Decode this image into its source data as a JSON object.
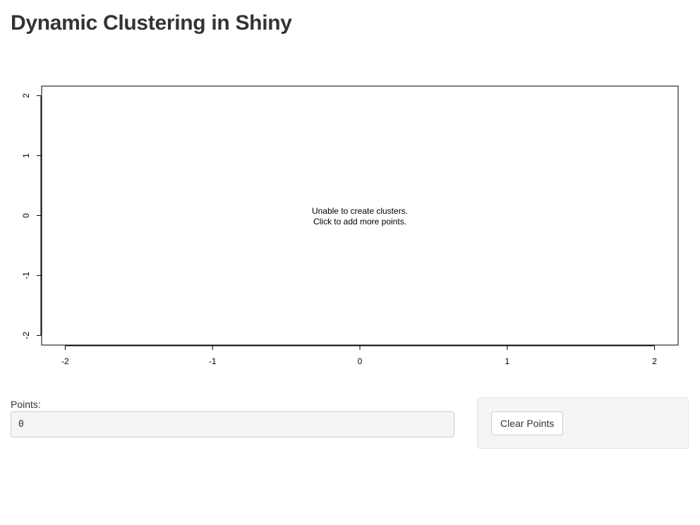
{
  "page": {
    "title": "Dynamic Clustering in Shiny"
  },
  "plot": {
    "message_line1": "Unable to create clusters.",
    "message_line2": "Click to add more points.",
    "x_ticks": [
      "-2",
      "-1",
      "0",
      "1",
      "2"
    ],
    "y_ticks": [
      "-2",
      "-1",
      "0",
      "1",
      "2"
    ]
  },
  "chart_data": {
    "type": "scatter",
    "series": [],
    "x_ticks": [
      -2,
      -1,
      0,
      1,
      2
    ],
    "y_ticks": [
      -2,
      -1,
      0,
      1,
      2
    ],
    "xlim": [
      -2.16,
      2.16
    ],
    "ylim": [
      -2.16,
      2.16
    ],
    "annotations": [
      "Unable to create clusters.",
      "Click to add more points."
    ],
    "grid": false
  },
  "points": {
    "label": "Points:",
    "value": "0"
  },
  "sidebar": {
    "clear_button": "Clear Points"
  }
}
